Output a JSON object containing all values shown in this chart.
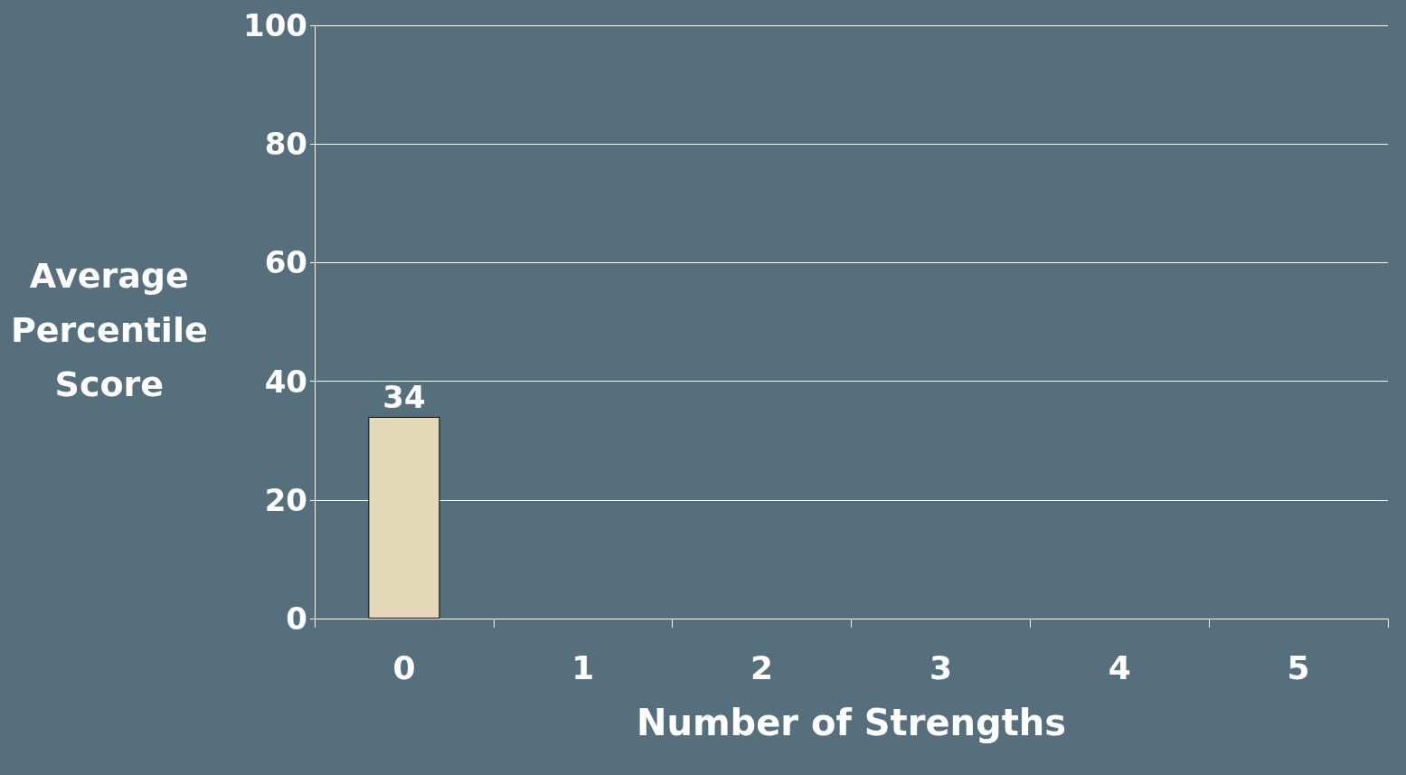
{
  "chart_data": {
    "type": "bar",
    "xlabel": "Number of Strengths",
    "ylabel": "Average\nPercentile\nScore",
    "categories": [
      "0",
      "1",
      "2",
      "3",
      "4",
      "5"
    ],
    "values": [
      34,
      null,
      null,
      null,
      null,
      null
    ],
    "color": "#e3d8b8",
    "ylim": [
      0,
      100
    ],
    "yticks": [
      0,
      20,
      40,
      60,
      80,
      100
    ],
    "grid": "y",
    "data_labels": true
  }
}
